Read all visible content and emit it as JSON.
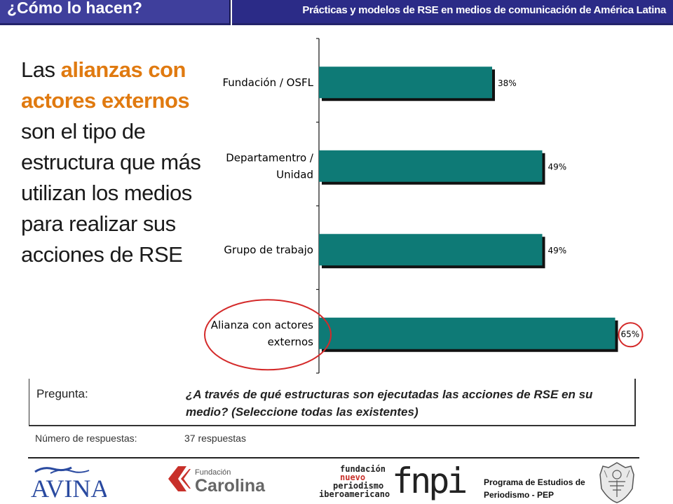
{
  "header": {
    "section_title": "¿Cómo lo hacen?",
    "report_title": "Prácticas y modelos de RSE en medios de comunicación de América Latina"
  },
  "headline": {
    "prefix": "Las ",
    "highlight": "alianzas con actores externos",
    "rest": " son el tipo de estructura que más utilizan los medios para realizar sus acciones de RSE"
  },
  "question": {
    "label": "Pregunta:",
    "text": "¿A través de qué estructuras son ejecutadas las acciones de RSE en su medio? (Seleccione todas las existentes)",
    "responses_label": "Número de respuestas:",
    "responses_value": "37 respuestas"
  },
  "footer": {
    "avina_text": "AVINA",
    "carolina_small": "Fundación",
    "carolina_big": "Carolina",
    "fnpi_words": [
      "fundación",
      "nuevo",
      "periodismo",
      "iberoamericano"
    ],
    "fnpi_acronym": "fnpi",
    "pep_line1": "Programa de Estudios de",
    "pep_line2": "Periodismo - PEP"
  },
  "colors": {
    "header_left": "#3f3f9c",
    "header_right": "#2b2b87",
    "highlight": "#e07a10",
    "bar_fill": "#0e7a76",
    "circle": "#d42a2a"
  },
  "chart_data": {
    "type": "bar",
    "orientation": "horizontal",
    "categories": [
      [
        "Fundación / OSFL"
      ],
      [
        "Departamentro /",
        "Unidad"
      ],
      [
        "Grupo de trabajo"
      ],
      [
        "Alianza con actores",
        "externos"
      ]
    ],
    "values": [
      38,
      49,
      49,
      65
    ],
    "value_labels": [
      "38%",
      "49%",
      "49%",
      "65%"
    ],
    "xlim": [
      0,
      70
    ],
    "highlighted_index": 3
  }
}
